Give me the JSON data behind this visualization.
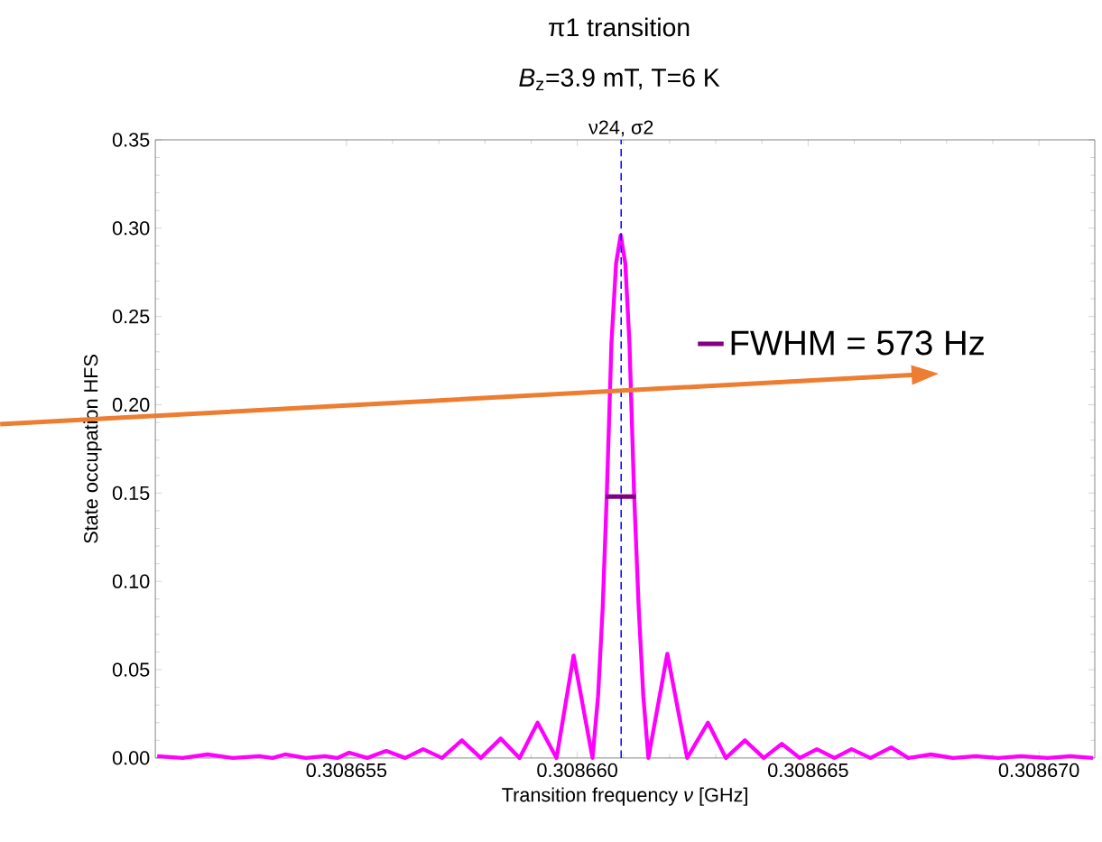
{
  "chart_data": {
    "type": "line",
    "title": "π1 transition",
    "subtitle": "*B*$_{z}$=3.9 mT, T=6 K",
    "xlabel": "Transition frequency *ν* [GHz]",
    "ylabel": "State occupation HFS",
    "x": [
      0.3086509,
      0.30865145,
      0.30865199,
      0.30865254,
      0.30865311,
      0.3086534,
      0.30865367,
      0.30865412,
      0.30865453,
      0.3086548,
      0.30865506,
      0.30865545,
      0.30865586,
      0.30865627,
      0.30865666,
      0.30865707,
      0.3086575,
      0.30865791,
      0.30865834,
      0.30865875,
      0.30865914,
      0.30865955,
      0.30865992,
      0.30866033,
      0.30866045,
      0.30866055,
      0.30866064,
      0.30866074,
      0.30866084,
      0.30866094,
      0.30866104,
      0.30866113,
      0.30866123,
      0.30866133,
      0.30866143,
      0.30866154,
      0.30866195,
      0.30866238,
      0.30866283,
      0.30866322,
      0.30866363,
      0.30866404,
      0.30866443,
      0.30866482,
      0.30866519,
      0.30866557,
      0.30866594,
      0.30866635,
      0.3086668,
      0.30866717,
      0.30866766,
      0.30866814,
      0.30866863,
      0.30866912,
      0.30866961,
      0.30867019,
      0.30867068,
      0.30867117
    ],
    "series": [
      {
        "color": "#ff00ff",
        "values": [
          0.001,
          0,
          0.002,
          0,
          0.001,
          0,
          0.002,
          0,
          0.001,
          0,
          0.003,
          0,
          0.004,
          0,
          0.005,
          0,
          0.01,
          0,
          0.011,
          0,
          0.02,
          0,
          0.058,
          0,
          0.035,
          0.085,
          0.15,
          0.235,
          0.28,
          0.296,
          0.28,
          0.235,
          0.15,
          0.085,
          0.035,
          0,
          0.059,
          0,
          0.02,
          0,
          0.01,
          0,
          0.008,
          0,
          0.005,
          0,
          0.005,
          0,
          0.006,
          0,
          0.002,
          0,
          0.001,
          0,
          0.001,
          0,
          0.001,
          0
        ]
      },
      {
        "name": "FWHM = 573 Hz",
        "color": "#800080",
        "x": [
          0.30866062,
          0.30866127
        ],
        "values": [
          0.148,
          0.148
        ]
      }
    ],
    "xlim": [
      0.30865086,
      0.30867121
    ],
    "ylim": [
      0,
      0.35
    ],
    "xticks": [
      0.308655,
      {
        "value": 0.30866,
        "label": "0.308660"
      },
      0.308665,
      {
        "value": 0.30867,
        "label": "0.308670"
      }
    ],
    "yticks": [
      {
        "value": 0,
        "label": "0.00"
      },
      {
        "value": 0.05,
        "label": "0.05"
      },
      {
        "value": 0.1,
        "label": "0.10"
      },
      {
        "value": 0.15,
        "label": "0.15"
      },
      {
        "value": 0.2,
        "label": "0.20"
      },
      {
        "value": 0.25,
        "label": "0.25"
      },
      {
        "value": 0.3,
        "label": "0.30"
      },
      {
        "value": 0.35,
        "label": "0.35"
      }
    ],
    "ref_lines": [
      {
        "axis": "x",
        "value": 0.30866095,
        "label": "ν24, σ2",
        "color": "#0000ff",
        "line_style": "dashed"
      }
    ],
    "legend": "right",
    "grid": false,
    "marker": "none",
    "line_style": "solid"
  }
}
